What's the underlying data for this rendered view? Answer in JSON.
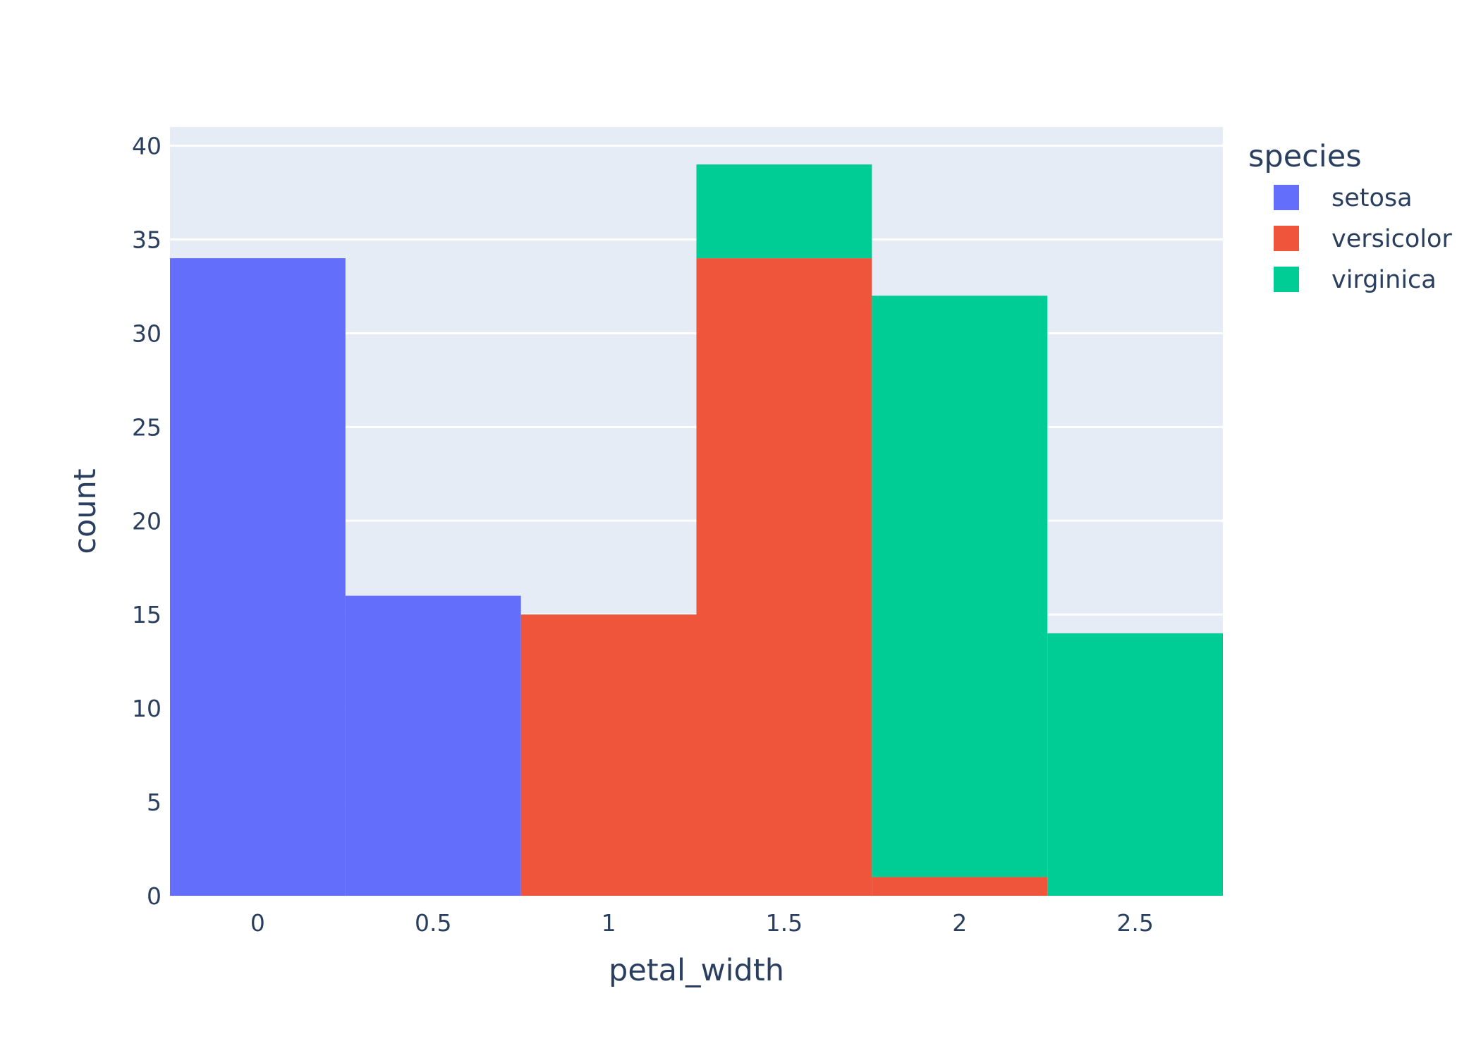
{
  "chart_data": {
    "type": "bar",
    "barmode": "stack",
    "bin_width": 0.5,
    "x": [
      0,
      0.5,
      1,
      1.5,
      2,
      2.5
    ],
    "xlabel": "petal_width",
    "ylabel": "count",
    "xlim": [
      -0.25,
      2.75
    ],
    "ylim": [
      0,
      41
    ],
    "xticks": [
      "0",
      "0.5",
      "1",
      "1.5",
      "2",
      "2.5"
    ],
    "yticks": [
      "0",
      "5",
      "10",
      "15",
      "20",
      "25",
      "30",
      "35",
      "40"
    ],
    "ytick_values": [
      0,
      5,
      10,
      15,
      20,
      25,
      30,
      35,
      40
    ],
    "grid": true,
    "plot_background": "#e5ecf6",
    "legend": {
      "title": "species",
      "placement": "right"
    },
    "series": [
      {
        "name": "setosa",
        "color": "#636efa",
        "values": [
          34,
          16,
          0,
          0,
          0,
          0
        ]
      },
      {
        "name": "versicolor",
        "color": "#ef553b",
        "values": [
          0,
          0,
          15,
          34,
          1,
          0
        ]
      },
      {
        "name": "virginica",
        "color": "#00cc96",
        "values": [
          0,
          0,
          0,
          5,
          31,
          14
        ]
      }
    ]
  }
}
